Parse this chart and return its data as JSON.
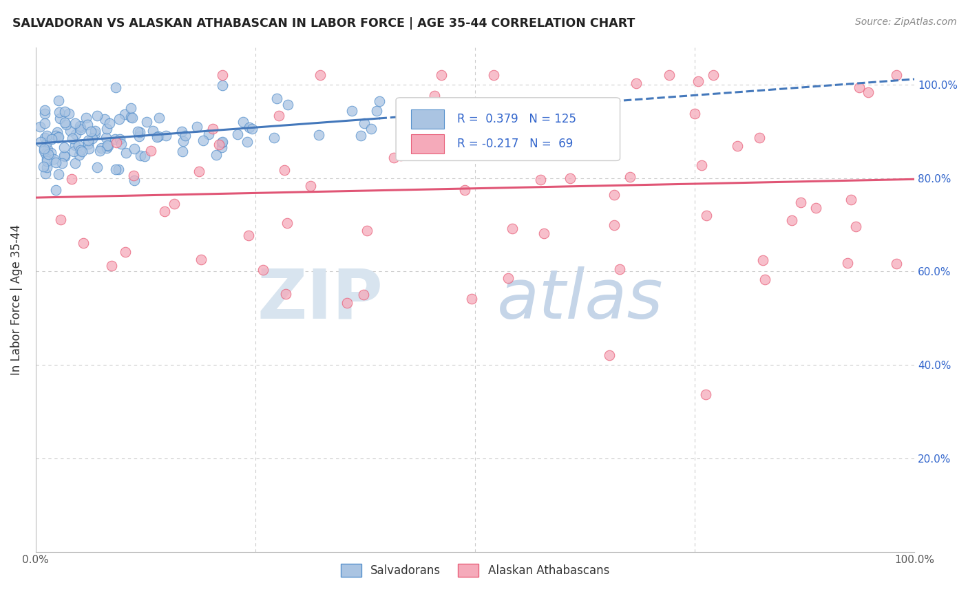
{
  "title": "SALVADORAN VS ALASKAN ATHABASCAN IN LABOR FORCE | AGE 35-44 CORRELATION CHART",
  "source": "Source: ZipAtlas.com",
  "ylabel": "In Labor Force | Age 35-44",
  "xlim": [
    0.0,
    1.0
  ],
  "ylim": [
    0.0,
    1.08
  ],
  "blue_R": 0.379,
  "blue_N": 125,
  "pink_R": -0.217,
  "pink_N": 69,
  "blue_color": "#aac4e2",
  "pink_color": "#f5aaba",
  "blue_edge": "#5590cc",
  "pink_edge": "#e8607a",
  "blue_line": "#4478bb",
  "pink_line": "#e05575",
  "legend_text_color": "#3366cc",
  "watermark_zip_color": "#d8e4ef",
  "watermark_atlas_color": "#c5d5e8"
}
